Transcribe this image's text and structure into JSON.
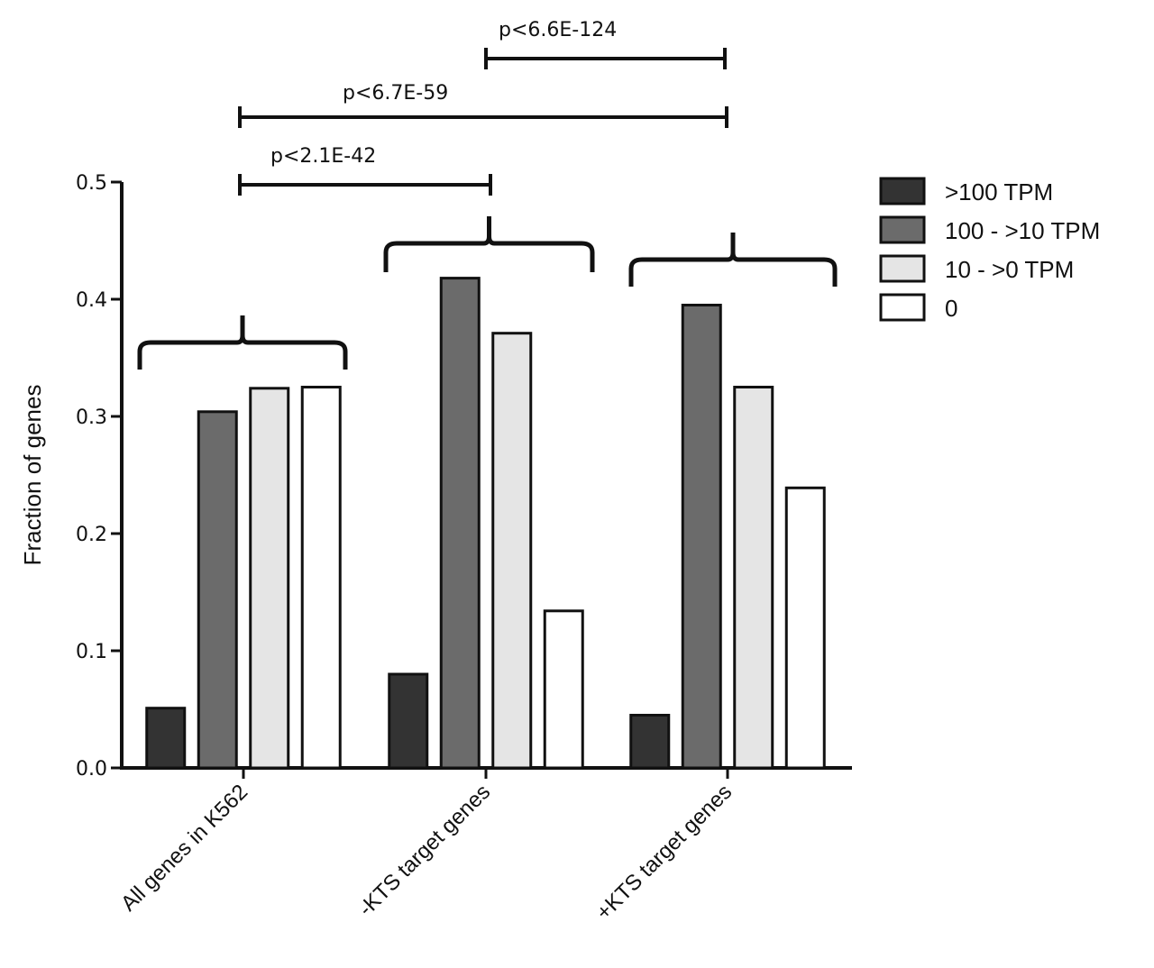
{
  "chart_data": {
    "type": "bar",
    "title": "",
    "xlabel": "",
    "ylabel": "Fraction of genes",
    "ylim": [
      0,
      0.5
    ],
    "yticks": [
      "0.0",
      "0.1",
      "0.2",
      "0.3",
      "0.4",
      "0.5"
    ],
    "categories": [
      "All genes in K562",
      "-KTS target genes",
      "+KTS target genes"
    ],
    "series": [
      {
        "name": ">100 TPM",
        "color": "#333333",
        "values": [
          0.051,
          0.08,
          0.045
        ]
      },
      {
        "name": "100 - >10 TPM",
        "color": "#6b6b6b",
        "values": [
          0.304,
          0.418,
          0.395
        ]
      },
      {
        "name": "10 - >0 TPM",
        "color": "#e5e5e5",
        "values": [
          0.324,
          0.371,
          0.325
        ]
      },
      {
        "name": "0",
        "color": "#ffffff",
        "values": [
          0.325,
          0.134,
          0.239
        ]
      }
    ],
    "legend_position": "top-right",
    "annotations": [
      {
        "text": "p<6.6E-124",
        "from": "-KTS target genes",
        "to": "+KTS target genes"
      },
      {
        "text": "p<6.7E-59",
        "from": "All genes in K562",
        "to": "+KTS target genes"
      },
      {
        "text": "p<2.1E-42",
        "from": "All genes in K562",
        "to": "-KTS target genes"
      }
    ]
  }
}
